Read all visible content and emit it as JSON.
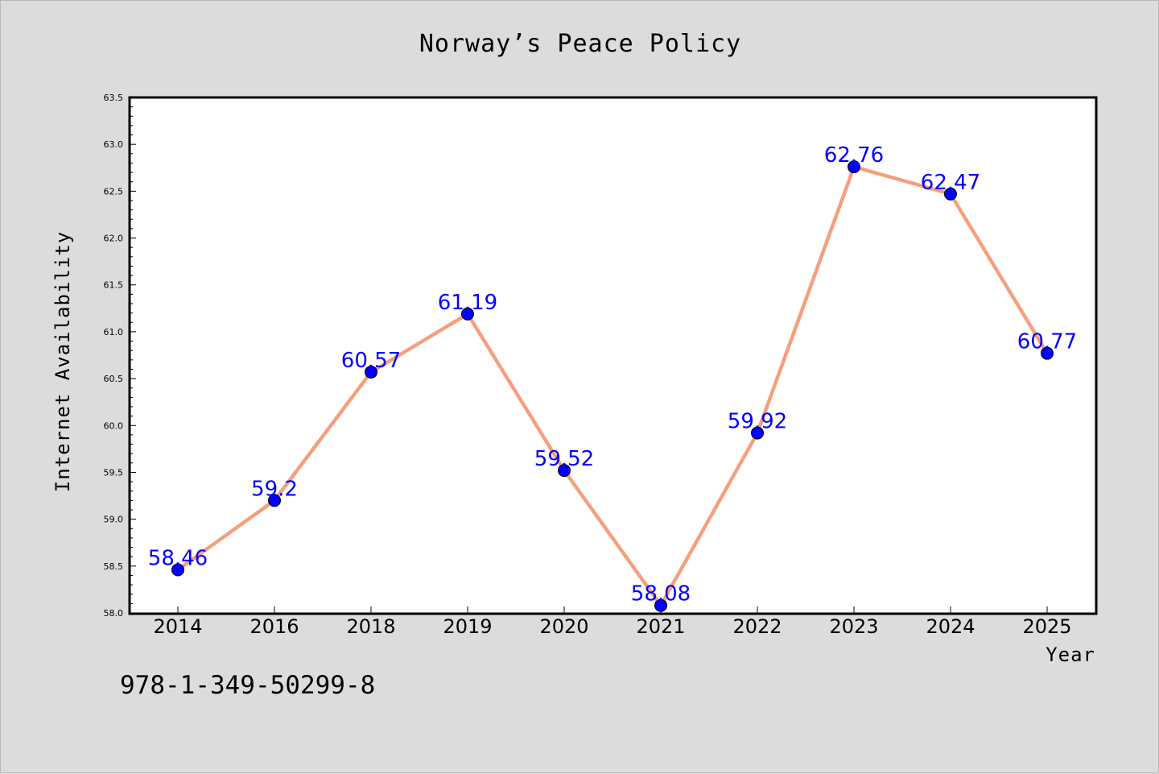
{
  "chart_data": {
    "type": "line",
    "title": "Norway’s Peace Policy",
    "xlabel": "Year",
    "ylabel": "Internet Availability",
    "categories": [
      "2014",
      "2016",
      "2018",
      "2019",
      "2020",
      "2021",
      "2022",
      "2023",
      "2024",
      "2025"
    ],
    "series": [
      {
        "values": [
          58.46,
          59.2,
          60.57,
          61.19,
          59.52,
          58.08,
          59.92,
          62.76,
          62.47,
          60.77
        ]
      }
    ],
    "data_labels": [
      "58.46",
      "59.2",
      "60.57",
      "61.19",
      "59.52",
      "58.08",
      "59.92",
      "62.76",
      "62.47",
      "60.77"
    ],
    "ylim": [
      58.0,
      63.5
    ],
    "yticks": [
      "58.0",
      "58.5",
      "59.0",
      "59.5",
      "60.0",
      "60.5",
      "61.0",
      "61.5",
      "62.0",
      "62.5",
      "63.0",
      "63.5"
    ],
    "grid": false,
    "line_color": "#f4a07e",
    "marker_color": "#0000ff",
    "label_color": "#0000ff",
    "background": "#dcdcdc",
    "plot_background": "#ffffff"
  },
  "footer": {
    "text": "978-1-349-50299-8"
  }
}
